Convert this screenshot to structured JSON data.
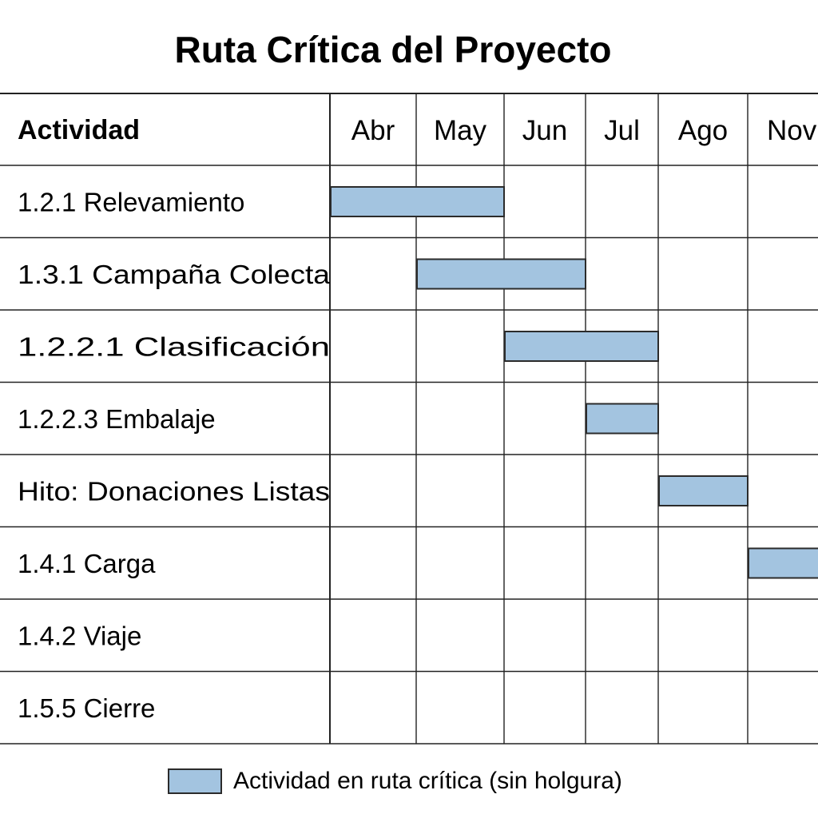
{
  "chart_data": {
    "type": "gantt",
    "title": "Ruta Crítica del Proyecto",
    "column_header": "Actividad",
    "months": [
      "Abr",
      "May",
      "Jun",
      "Jul",
      "Ago",
      "Nov"
    ],
    "tasks": [
      {
        "label": "1.2.1 Relevamiento",
        "start": "Abr",
        "end": "May"
      },
      {
        "label": "1.3.1 Campaña Colecta",
        "start": "May",
        "end": "Jun"
      },
      {
        "label": "1.2.2.1 Clasificación",
        "start": "Jun",
        "end": "Jul"
      },
      {
        "label": "1.2.2.3 Embalaje",
        "start": "Jul",
        "end": "Jul"
      },
      {
        "label": "Hito: Donaciones Listas",
        "start": "Ago",
        "end": "Ago"
      },
      {
        "label": "1.4.1 Carga",
        "start": "Nov",
        "end": "Nov"
      },
      {
        "label": "1.4.2 Viaje",
        "start": null,
        "end": null
      },
      {
        "label": "1.5.5 Cierre",
        "start": null,
        "end": null
      }
    ],
    "legend": {
      "label": "Actividad en ruta crítica (sin holgura)",
      "color": "#a3c4e0"
    },
    "grid": true
  }
}
